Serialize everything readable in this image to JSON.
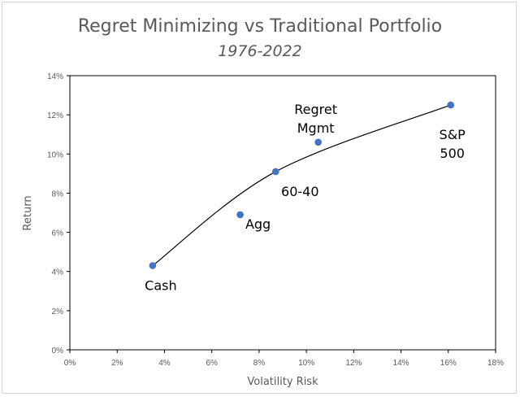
{
  "chart_data": {
    "type": "scatter",
    "title": "Regret Minimizing vs Traditional Portfolio",
    "subtitle": "1976-2022",
    "xlabel": "Volatility Risk",
    "ylabel": "Return",
    "xlim": [
      0,
      18
    ],
    "ylim": [
      0,
      14
    ],
    "x_ticks": [
      "0%",
      "2%",
      "4%",
      "6%",
      "8%",
      "10%",
      "12%",
      "14%",
      "16%",
      "18%"
    ],
    "y_ticks": [
      "0%",
      "2%",
      "4%",
      "6%",
      "8%",
      "10%",
      "12%",
      "14%"
    ],
    "grid": false,
    "legend": "none",
    "points": [
      {
        "label": "Cash",
        "x": 3.5,
        "y": 4.3
      },
      {
        "label": "Agg",
        "x": 7.2,
        "y": 6.9
      },
      {
        "label": "60-40",
        "x": 8.7,
        "y": 9.1
      },
      {
        "label": "Regret Mgmt",
        "x": 10.5,
        "y": 10.6
      },
      {
        "label": "S&P 500",
        "x": 16.1,
        "y": 12.5
      }
    ],
    "trendline": {
      "type": "smooth curve",
      "through": [
        "Cash",
        "60-40",
        "S&P 500"
      ],
      "color": "#000000"
    },
    "marker_color": "#4472c4"
  }
}
